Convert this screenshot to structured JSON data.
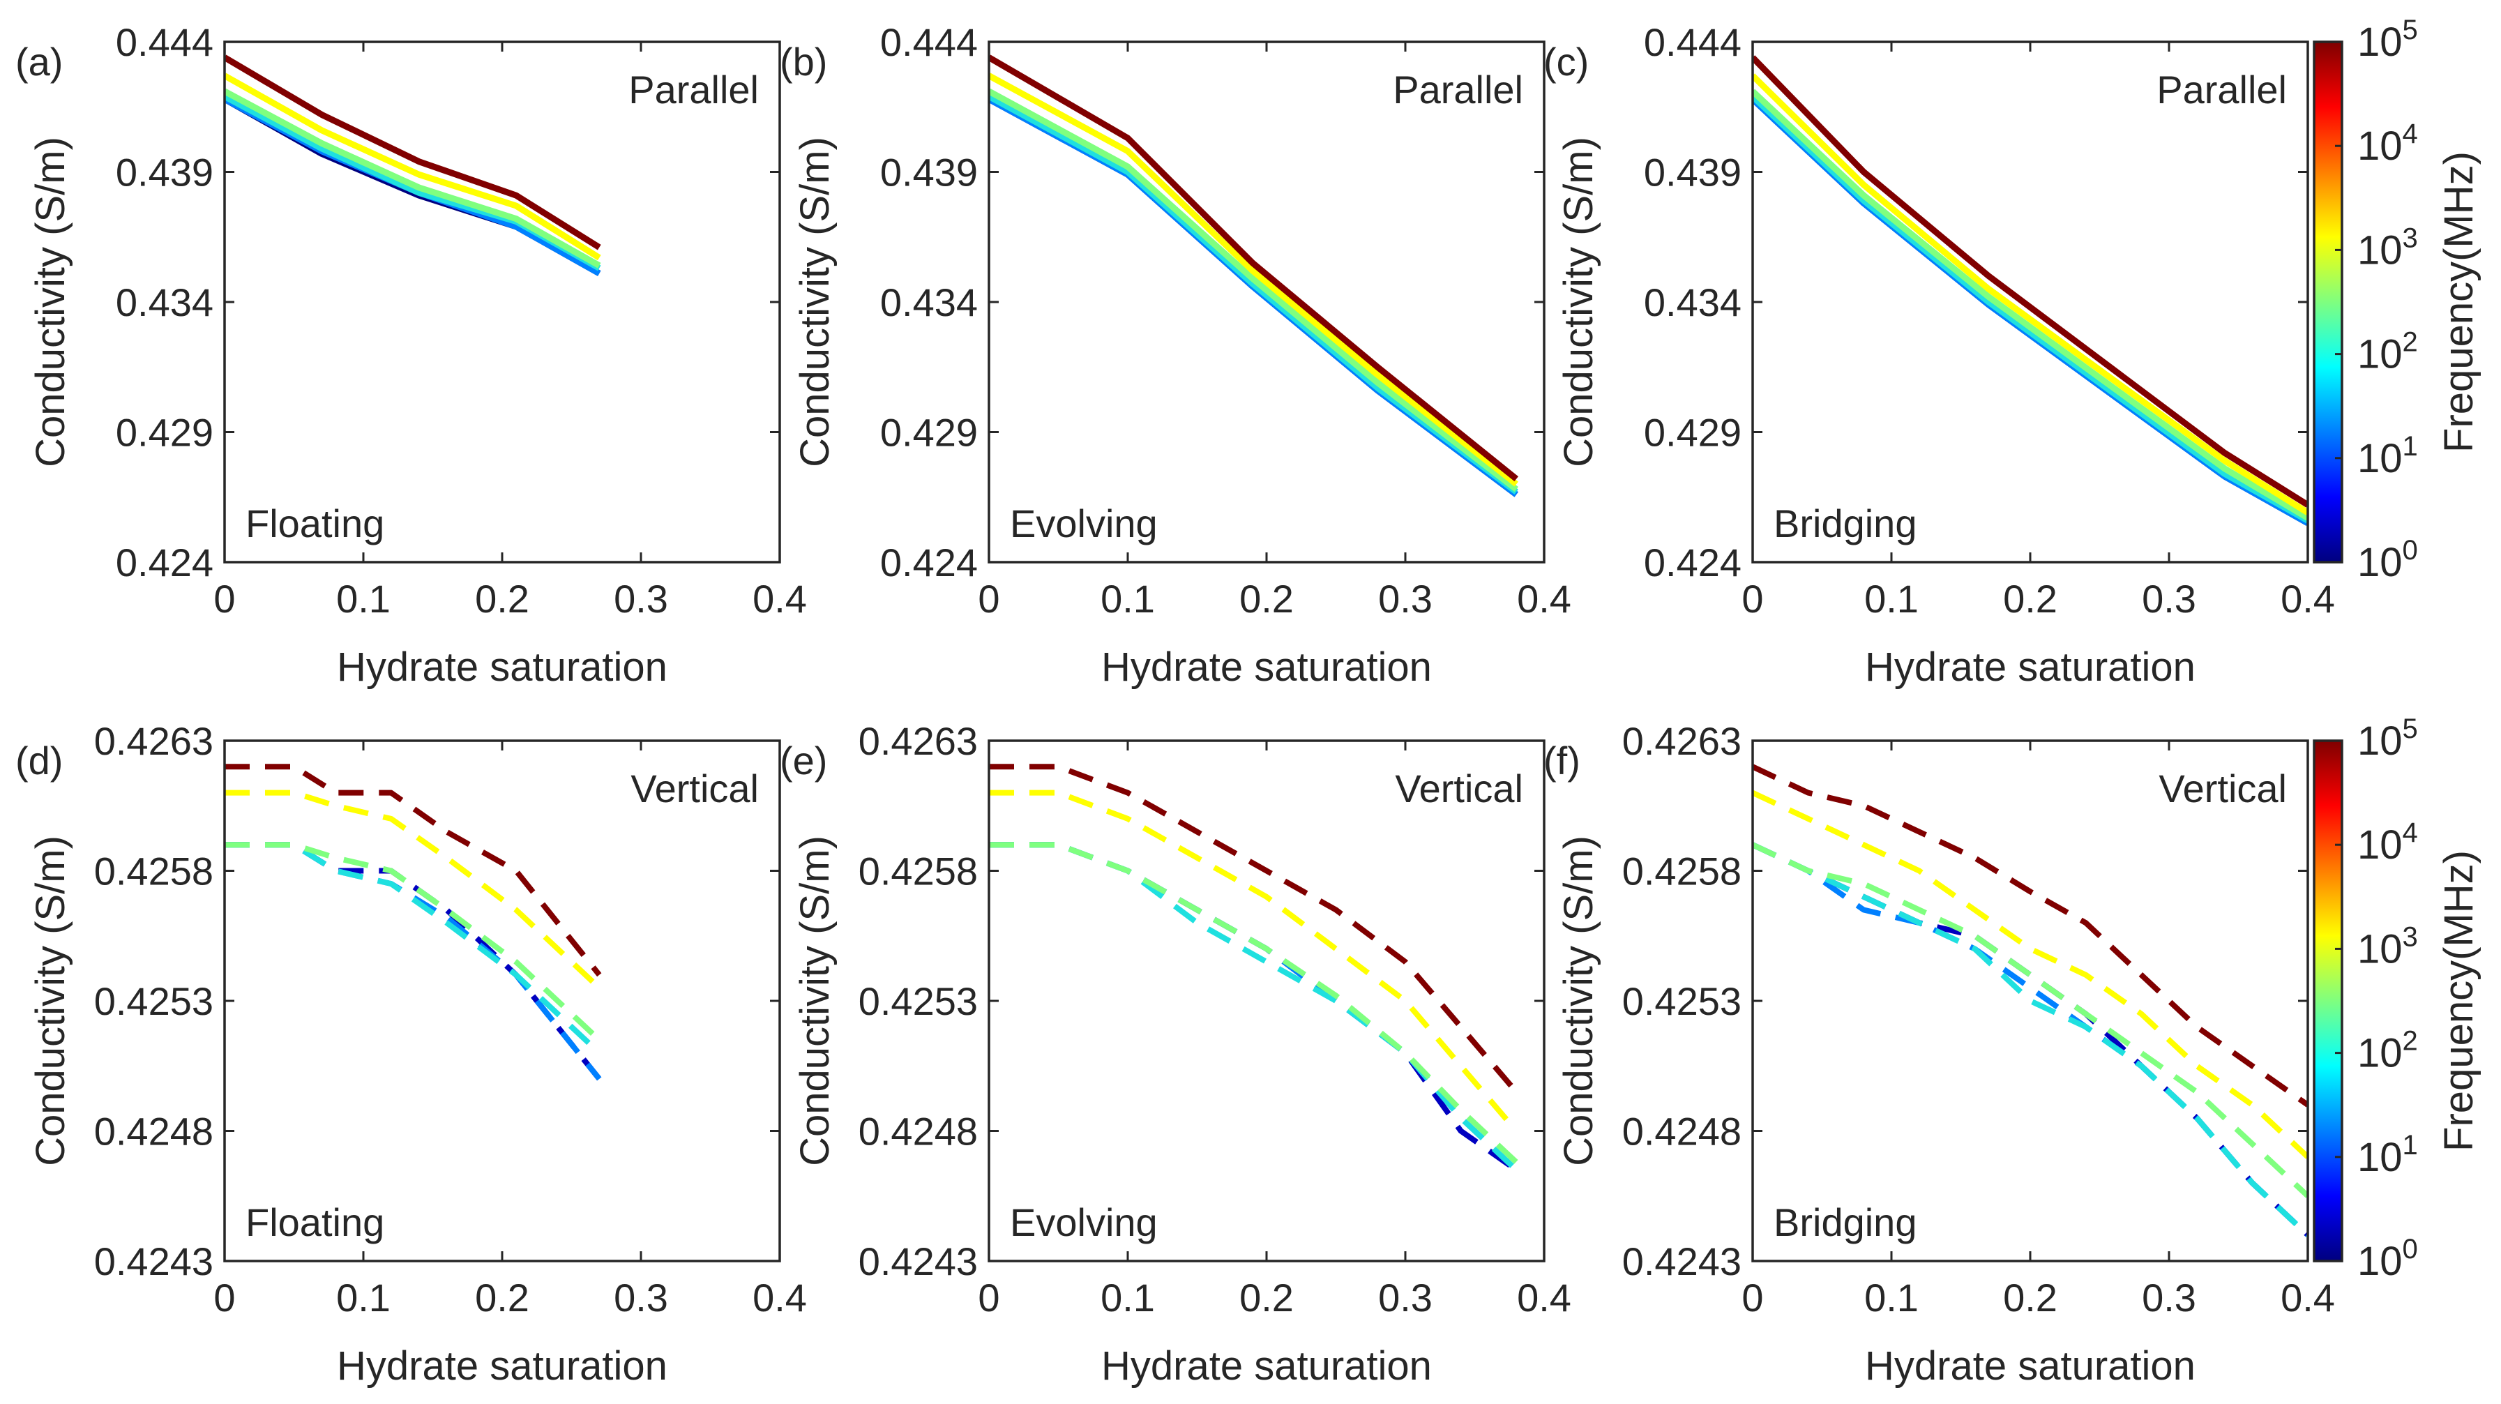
{
  "chart_data": [
    {
      "panel": "(a)",
      "type": "line",
      "orientation": "Parallel",
      "mode": "Floating",
      "xlabel": "Hydrate saturation",
      "ylabel": "Conductivity (S/m)",
      "xlim": [
        0,
        0.4
      ],
      "ylim": [
        0.424,
        0.444
      ],
      "xticks": [
        "0",
        "0.1",
        "0.2",
        "0.3",
        "0.4"
      ],
      "yticks": [
        "0.424",
        "0.429",
        "0.434",
        "0.439",
        "0.444"
      ],
      "dashed": false,
      "x": [
        0,
        0.07,
        0.14,
        0.21,
        0.27
      ],
      "series": [
        {
          "name": "10^0 MHz",
          "color": "#00007f",
          "values": [
            0.4418,
            0.4397,
            0.4381,
            0.4369,
            0.4351
          ]
        },
        {
          "name": "10^1 MHz",
          "color": "#0080ff",
          "values": [
            0.4418,
            0.4398,
            0.4382,
            0.4369,
            0.4351
          ]
        },
        {
          "name": "10^2 MHz",
          "color": "#1fe0df",
          "values": [
            0.4419,
            0.4399,
            0.4382,
            0.4371,
            0.4353
          ]
        },
        {
          "name": "10^3 MHz",
          "color": "#7fff7f",
          "values": [
            0.4421,
            0.4401,
            0.4384,
            0.4372,
            0.4354
          ]
        },
        {
          "name": "10^4 MHz",
          "color": "#ffff00",
          "values": [
            0.4427,
            0.4406,
            0.4389,
            0.4377,
            0.4357
          ]
        },
        {
          "name": "10^5 MHz",
          "color": "#800000",
          "values": [
            0.4434,
            0.4412,
            0.4394,
            0.4381,
            0.4361
          ]
        }
      ]
    },
    {
      "panel": "(b)",
      "type": "line",
      "orientation": "Parallel",
      "mode": "Evolving",
      "xlabel": "Hydrate saturation",
      "ylabel": "Conductivity (S/m)",
      "xlim": [
        0,
        0.4
      ],
      "ylim": [
        0.424,
        0.444
      ],
      "xticks": [
        "0",
        "0.1",
        "0.2",
        "0.3",
        "0.4"
      ],
      "yticks": [
        "0.424",
        "0.429",
        "0.434",
        "0.439",
        "0.444"
      ],
      "dashed": false,
      "x": [
        0,
        0.1,
        0.19,
        0.28,
        0.38
      ],
      "series": [
        {
          "name": "10^0 MHz",
          "color": "#00007f",
          "values": [
            0.4418,
            0.4389,
            0.4346,
            0.4306,
            0.4266
          ]
        },
        {
          "name": "10^1 MHz",
          "color": "#0080ff",
          "values": [
            0.4418,
            0.4389,
            0.4346,
            0.4306,
            0.4266
          ]
        },
        {
          "name": "10^2 MHz",
          "color": "#1fe0df",
          "values": [
            0.4419,
            0.439,
            0.4347,
            0.4307,
            0.4267
          ]
        },
        {
          "name": "10^3 MHz",
          "color": "#7fff7f",
          "values": [
            0.4421,
            0.4392,
            0.4349,
            0.4309,
            0.4268
          ]
        },
        {
          "name": "10^4 MHz",
          "color": "#ffff00",
          "values": [
            0.4427,
            0.4398,
            0.4352,
            0.4312,
            0.427
          ]
        },
        {
          "name": "10^5 MHz",
          "color": "#800000",
          "values": [
            0.4434,
            0.4403,
            0.4355,
            0.4315,
            0.4272
          ]
        }
      ]
    },
    {
      "panel": "(c)",
      "type": "line",
      "orientation": "Parallel",
      "mode": "Bridging",
      "xlabel": "Hydrate saturation",
      "ylabel": "Conductivity (S/m)",
      "xlim": [
        0,
        0.4
      ],
      "ylim": [
        0.424,
        0.444
      ],
      "xticks": [
        "0",
        "0.1",
        "0.2",
        "0.3",
        "0.4"
      ],
      "yticks": [
        "0.424",
        "0.429",
        "0.434",
        "0.439",
        "0.444"
      ],
      "dashed": false,
      "x": [
        0,
        0.08,
        0.17,
        0.26,
        0.34,
        0.4
      ],
      "series": [
        {
          "name": "10^0 MHz",
          "color": "#00007f",
          "values": [
            0.4418,
            0.4378,
            0.4339,
            0.4304,
            0.4273,
            0.4255
          ]
        },
        {
          "name": "10^1 MHz",
          "color": "#0080ff",
          "values": [
            0.4418,
            0.4378,
            0.4339,
            0.4304,
            0.4273,
            0.4255
          ]
        },
        {
          "name": "10^2 MHz",
          "color": "#1fe0df",
          "values": [
            0.4419,
            0.4379,
            0.434,
            0.4305,
            0.4274,
            0.4256
          ]
        },
        {
          "name": "10^3 MHz",
          "color": "#7fff7f",
          "values": [
            0.4421,
            0.4381,
            0.4342,
            0.4307,
            0.4276,
            0.4257
          ]
        },
        {
          "name": "10^4 MHz",
          "color": "#ffff00",
          "values": [
            0.4427,
            0.4385,
            0.4345,
            0.431,
            0.4279,
            0.4259
          ]
        },
        {
          "name": "10^5 MHz",
          "color": "#800000",
          "values": [
            0.4434,
            0.439,
            0.435,
            0.4314,
            0.4282,
            0.4262
          ]
        }
      ]
    },
    {
      "panel": "(d)",
      "type": "line",
      "orientation": "Vertical",
      "mode": "Floating",
      "xlabel": "Hydrate saturation",
      "ylabel": "Conductivity (S/m)",
      "xlim": [
        0,
        0.4
      ],
      "ylim": [
        0.4243,
        0.4263
      ],
      "xticks": [
        "0",
        "0.1",
        "0.2",
        "0.3",
        "0.4"
      ],
      "yticks": [
        "0.4243",
        "0.4248",
        "0.4253",
        "0.4258",
        "0.4263"
      ],
      "dashed": true,
      "x": [
        0,
        0.05,
        0.08,
        0.12,
        0.16,
        0.21,
        0.27
      ],
      "series": [
        {
          "name": "10^0 MHz",
          "color": "#0000c0",
          "values": [
            0.4259,
            0.4259,
            0.4258,
            0.4258,
            0.42565,
            0.4254,
            0.425
          ]
        },
        {
          "name": "10^1 MHz",
          "color": "#0080ff",
          "values": [
            0.4259,
            0.4259,
            0.4258,
            0.42575,
            0.42562,
            0.4254,
            0.425
          ]
        },
        {
          "name": "10^2 MHz",
          "color": "#1fe0df",
          "values": [
            0.4259,
            0.4259,
            0.4258,
            0.42575,
            0.4256,
            0.4254,
            0.4251
          ]
        },
        {
          "name": "10^3 MHz",
          "color": "#7fff7f",
          "values": [
            0.4259,
            0.4259,
            0.42585,
            0.4258,
            0.42565,
            0.42545,
            0.42515
          ]
        },
        {
          "name": "10^4 MHz",
          "color": "#ffff00",
          "values": [
            0.4261,
            0.4261,
            0.42605,
            0.426,
            0.42585,
            0.42565,
            0.42535
          ]
        },
        {
          "name": "10^5 MHz",
          "color": "#800000",
          "values": [
            0.4262,
            0.4262,
            0.4261,
            0.4261,
            0.42595,
            0.4258,
            0.4254
          ]
        }
      ]
    },
    {
      "panel": "(e)",
      "type": "line",
      "orientation": "Vertical",
      "mode": "Evolving",
      "xlabel": "Hydrate saturation",
      "ylabel": "Conductivity (S/m)",
      "xlim": [
        0,
        0.4
      ],
      "ylim": [
        0.4243,
        0.4263
      ],
      "xticks": [
        "0",
        "0.1",
        "0.2",
        "0.3",
        "0.4"
      ],
      "yticks": [
        "0.4243",
        "0.4248",
        "0.4253",
        "0.4258",
        "0.4263"
      ],
      "dashed": true,
      "x": [
        0,
        0.05,
        0.1,
        0.15,
        0.2,
        0.25,
        0.3,
        0.34,
        0.38
      ],
      "series": [
        {
          "name": "10^0 MHz",
          "color": "#0000c0",
          "values": [
            0.4259,
            0.4259,
            0.4258,
            0.42565,
            0.4255,
            0.4253,
            0.4251,
            0.4248,
            0.42465
          ]
        },
        {
          "name": "10^1 MHz",
          "color": "#0080ff",
          "values": [
            0.4259,
            0.4259,
            0.4258,
            0.42565,
            0.4255,
            0.4253,
            0.4251,
            0.42485,
            0.42465
          ]
        },
        {
          "name": "10^2 MHz",
          "color": "#1fe0df",
          "values": [
            0.4259,
            0.4259,
            0.4258,
            0.4256,
            0.42545,
            0.4253,
            0.4251,
            0.42485,
            0.42465
          ]
        },
        {
          "name": "10^3 MHz",
          "color": "#7fff7f",
          "values": [
            0.4259,
            0.4259,
            0.4258,
            0.42565,
            0.4255,
            0.42532,
            0.4251,
            0.42488,
            0.42468
          ]
        },
        {
          "name": "10^4 MHz",
          "color": "#ffff00",
          "values": [
            0.4261,
            0.4261,
            0.426,
            0.42585,
            0.4257,
            0.4255,
            0.4253,
            0.42505,
            0.4248
          ]
        },
        {
          "name": "10^5 MHz",
          "color": "#800000",
          "values": [
            0.4262,
            0.4262,
            0.4261,
            0.42595,
            0.4258,
            0.42565,
            0.42545,
            0.4252,
            0.42495
          ]
        }
      ]
    },
    {
      "panel": "(f)",
      "type": "line",
      "orientation": "Vertical",
      "mode": "Bridging",
      "xlabel": "Hydrate saturation",
      "ylabel": "Conductivity (S/m)",
      "xlim": [
        0,
        0.4
      ],
      "ylim": [
        0.4243,
        0.4263
      ],
      "xticks": [
        "0",
        "0.1",
        "0.2",
        "0.3",
        "0.4"
      ],
      "yticks": [
        "0.4243",
        "0.4248",
        "0.4253",
        "0.4258",
        "0.4263"
      ],
      "dashed": true,
      "x": [
        0,
        0.04,
        0.08,
        0.12,
        0.16,
        0.2,
        0.24,
        0.28,
        0.32,
        0.36,
        0.4
      ],
      "series": [
        {
          "name": "10^0 MHz",
          "color": "#0000c0",
          "values": [
            0.4259,
            0.4258,
            0.4257,
            0.4256,
            0.42555,
            0.4254,
            0.42525,
            0.42505,
            0.42485,
            0.4246,
            0.4244
          ]
        },
        {
          "name": "10^1 MHz",
          "color": "#0080ff",
          "values": [
            0.4259,
            0.4258,
            0.42565,
            0.4256,
            0.4255,
            0.42535,
            0.4252,
            0.42505,
            0.42485,
            0.4246,
            0.4244
          ]
        },
        {
          "name": "10^2 MHz",
          "color": "#1fe0df",
          "values": [
            0.4259,
            0.4258,
            0.4257,
            0.4256,
            0.4255,
            0.4253,
            0.4252,
            0.42505,
            0.42485,
            0.4246,
            0.4244
          ]
        },
        {
          "name": "10^3 MHz",
          "color": "#7fff7f",
          "values": [
            0.4259,
            0.4258,
            0.42575,
            0.42565,
            0.42555,
            0.4254,
            0.42525,
            0.4251,
            0.42495,
            0.42475,
            0.42455
          ]
        },
        {
          "name": "10^4 MHz",
          "color": "#ffff00",
          "values": [
            0.4261,
            0.426,
            0.4259,
            0.4258,
            0.42565,
            0.4255,
            0.4254,
            0.42525,
            0.42505,
            0.4249,
            0.4247
          ]
        },
        {
          "name": "10^5 MHz",
          "color": "#800000",
          "values": [
            0.4262,
            0.4261,
            0.42605,
            0.42595,
            0.42585,
            0.42572,
            0.4256,
            0.4254,
            0.4252,
            0.42505,
            0.4249
          ]
        }
      ]
    }
  ],
  "colorbar": {
    "label": "Frequency(MHz)",
    "ticks": [
      "0",
      "1",
      "2",
      "3",
      "4",
      "5"
    ],
    "tick_base": "10",
    "colormap": "jet",
    "stops": [
      "#00007f",
      "#0000ff",
      "#007fff",
      "#00ffff",
      "#7fff7f",
      "#ffff00",
      "#ff7f00",
      "#ff0000",
      "#7f0000"
    ]
  }
}
